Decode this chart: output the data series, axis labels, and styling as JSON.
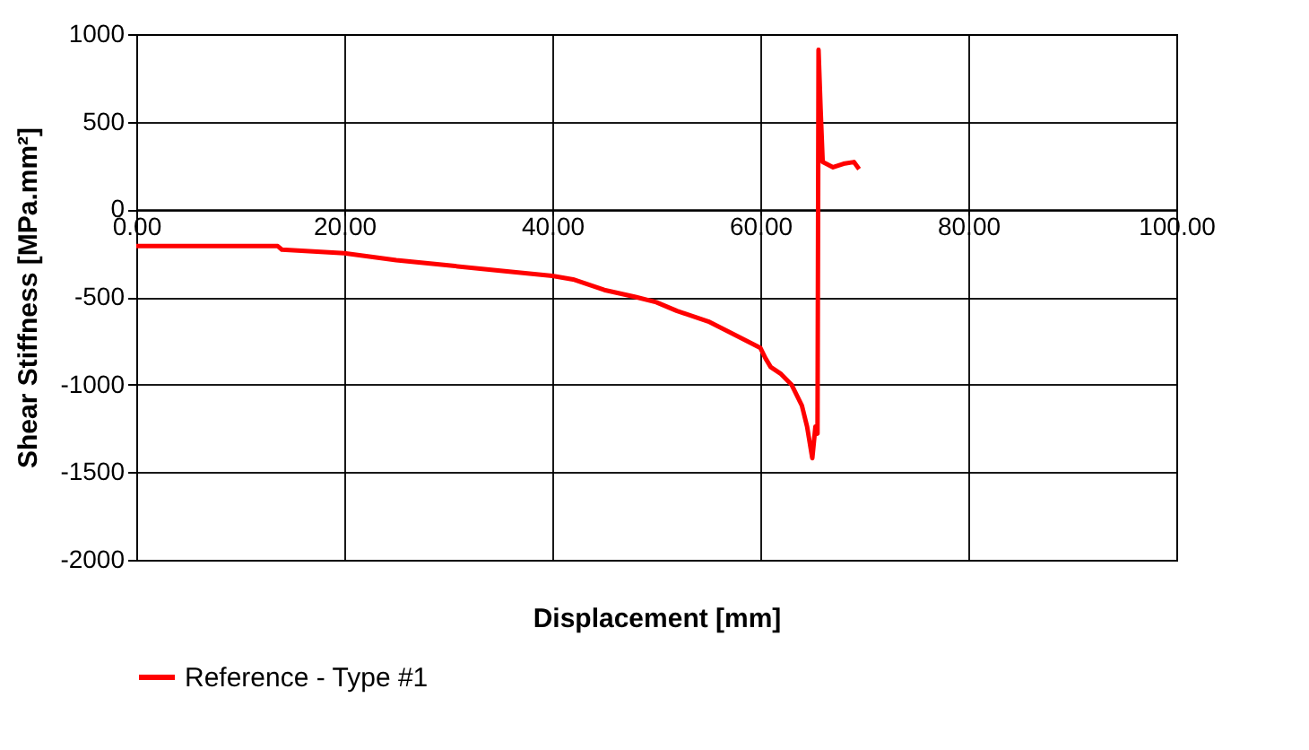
{
  "chart_data": {
    "type": "line",
    "xlabel": "Displacement [mm]",
    "ylabel": "Shear Stiffness [MPa.mm²]",
    "xlim": [
      0,
      100
    ],
    "ylim": [
      -2000,
      1000
    ],
    "xticks": [
      {
        "value": 0,
        "label": "0.00"
      },
      {
        "value": 20,
        "label": "20.00"
      },
      {
        "value": 40,
        "label": "40.00"
      },
      {
        "value": 60,
        "label": "60.00"
      },
      {
        "value": 80,
        "label": "80.00"
      },
      {
        "value": 100,
        "label": "100.00"
      }
    ],
    "yticks": [
      -2000,
      -1500,
      -1000,
      -500,
      0,
      500,
      1000
    ],
    "grid": true,
    "legend": "bottom",
    "line_style": "solid",
    "marker": "none",
    "series": [
      {
        "name": "Reference - Type #1",
        "color": "#ff0000",
        "x": [
          0,
          5,
          10,
          13.6,
          14,
          20,
          25,
          30,
          35,
          40,
          42,
          45,
          48,
          50,
          52,
          55,
          57,
          60,
          60.5,
          61,
          62,
          63,
          64,
          64.5,
          65,
          65.3,
          65.5,
          65.6,
          65.8,
          66,
          67,
          68,
          69,
          69.5
        ],
        "values": [
          -210,
          -210,
          -210,
          -210,
          -230,
          -250,
          -290,
          -320,
          -350,
          -380,
          -400,
          -460,
          -500,
          -530,
          -580,
          -640,
          -700,
          -790,
          -850,
          -900,
          -940,
          -1000,
          -1120,
          -1240,
          -1420,
          -1240,
          -1280,
          910,
          570,
          270,
          240,
          260,
          270,
          230
        ]
      }
    ]
  }
}
